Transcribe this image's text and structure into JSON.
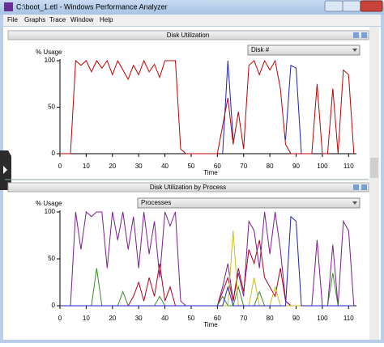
{
  "window": {
    "title": "C:\\boot_1.etl - Windows Performance Analyzer",
    "menu": [
      "File",
      "Graphs",
      "Trace",
      "Window",
      "Help"
    ]
  },
  "chart_data": [
    {
      "type": "line",
      "title": "Disk Utilization",
      "dropdown": "Disk #",
      "ylabel": "% Usage",
      "xlabel": "Time",
      "x": [
        0,
        2,
        4,
        6,
        8,
        10,
        12,
        14,
        16,
        18,
        20,
        22,
        24,
        26,
        28,
        30,
        32,
        34,
        36,
        38,
        40,
        42,
        44,
        46,
        48,
        50,
        52,
        54,
        56,
        58,
        60,
        62,
        64,
        66,
        68,
        70,
        72,
        74,
        76,
        78,
        80,
        82,
        84,
        86,
        88,
        90,
        92,
        94,
        96,
        98,
        100,
        102,
        104,
        106,
        108,
        110,
        112
      ],
      "series": [
        {
          "color": "#c00000",
          "values": [
            0,
            0,
            0,
            100,
            95,
            100,
            88,
            100,
            92,
            100,
            85,
            100,
            90,
            80,
            95,
            85,
            100,
            88,
            96,
            82,
            100,
            100,
            100,
            5,
            0,
            0,
            0,
            0,
            0,
            0,
            0,
            30,
            60,
            10,
            45,
            5,
            95,
            100,
            85,
            100,
            90,
            100,
            70,
            10,
            0,
            0,
            0,
            0,
            0,
            75,
            0,
            0,
            70,
            0,
            90,
            85,
            0
          ]
        },
        {
          "color": "#2020c0",
          "values": [
            null,
            null,
            null,
            null,
            null,
            null,
            null,
            null,
            null,
            null,
            null,
            null,
            null,
            null,
            null,
            null,
            null,
            null,
            null,
            null,
            null,
            null,
            null,
            null,
            null,
            null,
            null,
            null,
            null,
            null,
            null,
            0,
            100,
            15,
            null,
            null,
            null,
            null,
            null,
            null,
            null,
            null,
            null,
            15,
            95,
            92,
            0,
            null,
            null,
            null,
            null,
            null,
            null,
            null,
            null,
            null,
            null
          ]
        }
      ],
      "xlim": [
        0,
        113
      ],
      "ylim": [
        0,
        100
      ],
      "xticks": [
        0,
        10,
        20,
        30,
        40,
        50,
        60,
        70,
        80,
        90,
        100,
        110
      ],
      "yticks": [
        0,
        50,
        100
      ]
    },
    {
      "type": "line",
      "title": "Disk Utilization by Process",
      "dropdown": "Processes",
      "ylabel": "% Usage",
      "xlabel": "Time",
      "x": [
        0,
        2,
        4,
        6,
        8,
        10,
        12,
        14,
        16,
        18,
        20,
        22,
        24,
        26,
        28,
        30,
        32,
        34,
        36,
        38,
        40,
        42,
        44,
        46,
        48,
        50,
        52,
        54,
        56,
        58,
        60,
        62,
        64,
        66,
        68,
        70,
        72,
        74,
        76,
        78,
        80,
        82,
        84,
        86,
        88,
        90,
        92,
        94,
        96,
        98,
        100,
        102,
        104,
        106,
        108,
        110,
        112
      ],
      "series": [
        {
          "color": "#7a1f8c",
          "values": [
            0,
            0,
            0,
            100,
            60,
            100,
            95,
            100,
            100,
            40,
            100,
            70,
            100,
            60,
            95,
            40,
            100,
            55,
            90,
            30,
            100,
            85,
            100,
            5,
            0,
            0,
            0,
            0,
            0,
            0,
            0,
            20,
            45,
            5,
            35,
            10,
            90,
            80,
            40,
            100,
            55,
            100,
            60,
            5,
            0,
            0,
            0,
            0,
            0,
            70,
            0,
            0,
            65,
            0,
            90,
            80,
            0
          ]
        },
        {
          "color": "#b00020",
          "values": [
            0,
            0,
            0,
            0,
            0,
            0,
            0,
            0,
            0,
            0,
            0,
            0,
            0,
            0,
            10,
            25,
            5,
            30,
            10,
            45,
            5,
            20,
            0,
            0,
            0,
            0,
            0,
            0,
            0,
            0,
            0,
            15,
            30,
            5,
            40,
            15,
            60,
            45,
            70,
            30,
            20,
            10,
            40,
            5,
            0,
            0,
            0,
            0,
            0,
            0,
            0,
            0,
            0,
            0,
            0,
            0,
            0
          ]
        },
        {
          "color": "#3a8a2a",
          "values": [
            0,
            0,
            0,
            0,
            0,
            0,
            0,
            40,
            0,
            0,
            0,
            0,
            15,
            0,
            0,
            0,
            0,
            0,
            0,
            10,
            0,
            0,
            0,
            0,
            0,
            0,
            0,
            0,
            0,
            0,
            0,
            10,
            0,
            0,
            20,
            0,
            0,
            0,
            15,
            0,
            0,
            0,
            0,
            0,
            0,
            0,
            0,
            0,
            0,
            0,
            0,
            0,
            35,
            0,
            0,
            0,
            0
          ]
        },
        {
          "color": "#c8c020",
          "values": [
            0,
            0,
            0,
            0,
            0,
            0,
            0,
            0,
            0,
            0,
            0,
            0,
            0,
            0,
            0,
            0,
            0,
            0,
            0,
            0,
            0,
            0,
            0,
            0,
            0,
            0,
            0,
            0,
            0,
            0,
            0,
            0,
            0,
            80,
            0,
            0,
            0,
            30,
            0,
            0,
            0,
            20,
            0,
            0,
            0,
            0,
            0,
            0,
            0,
            0,
            0,
            0,
            0,
            0,
            0,
            0,
            0
          ]
        },
        {
          "color": "#2020c0",
          "values": [
            0,
            0,
            0,
            0,
            0,
            0,
            0,
            0,
            0,
            0,
            0,
            0,
            0,
            0,
            0,
            0,
            0,
            0,
            0,
            0,
            0,
            0,
            0,
            0,
            0,
            0,
            0,
            0,
            0,
            0,
            0,
            0,
            20,
            0,
            0,
            0,
            0,
            0,
            0,
            0,
            0,
            0,
            0,
            0,
            95,
            90,
            0,
            0,
            0,
            0,
            0,
            0,
            0,
            0,
            0,
            0,
            0
          ]
        }
      ],
      "xlim": [
        0,
        113
      ],
      "ylim": [
        0,
        100
      ],
      "xticks": [
        0,
        10,
        20,
        30,
        40,
        50,
        60,
        70,
        80,
        90,
        100,
        110
      ],
      "yticks": [
        0,
        50,
        100
      ]
    }
  ]
}
